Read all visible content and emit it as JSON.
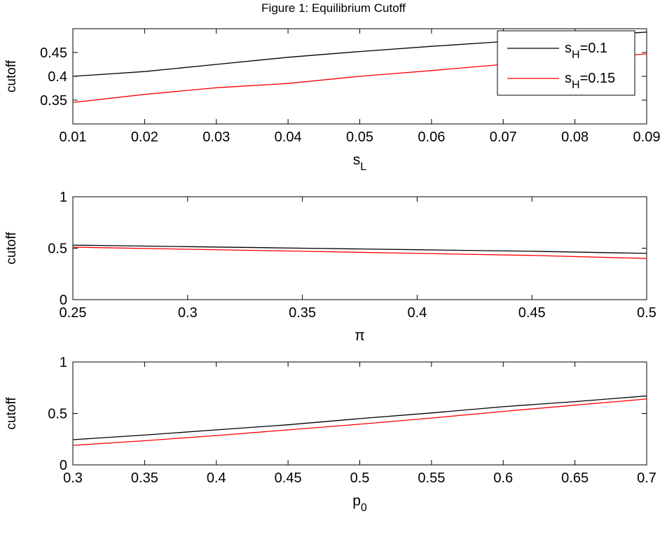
{
  "figure_title": "Figure 1: Equilibrium Cutoff",
  "chart_data": [
    {
      "type": "line",
      "xlabel_base": "s",
      "xlabel_sub": "L",
      "ylabel": "cutoff",
      "xlim": [
        0.01,
        0.09
      ],
      "ylim": [
        0.3,
        0.5
      ],
      "xticks": [
        "0.01",
        "0.02",
        "0.03",
        "0.04",
        "0.05",
        "0.06",
        "0.07",
        "0.08",
        "0.09"
      ],
      "xtick_values": [
        0.01,
        0.02,
        0.03,
        0.04,
        0.05,
        0.06,
        0.07,
        0.08,
        0.09
      ],
      "yticks": [
        "0.35",
        "0.4",
        "0.45"
      ],
      "ytick_values": [
        0.35,
        0.4,
        0.45
      ],
      "grid": false,
      "legend_position": "top-right",
      "series": [
        {
          "name": "s_H=0.1",
          "label_base": "s",
          "label_sub": "H",
          "label_rest": "=0.1",
          "color": "#000000",
          "x": [
            0.01,
            0.02,
            0.03,
            0.04,
            0.05,
            0.06,
            0.07,
            0.08,
            0.09
          ],
          "y": [
            0.4,
            0.41,
            0.425,
            0.44,
            0.452,
            0.463,
            0.473,
            0.483,
            0.493
          ]
        },
        {
          "name": "s_H=0.15",
          "label_base": "s",
          "label_sub": "H",
          "label_rest": "=0.15",
          "color": "#ff0000",
          "x": [
            0.01,
            0.02,
            0.03,
            0.04,
            0.05,
            0.06,
            0.07,
            0.08,
            0.09
          ],
          "y": [
            0.345,
            0.362,
            0.376,
            0.385,
            0.4,
            0.412,
            0.425,
            0.436,
            0.447
          ]
        }
      ]
    },
    {
      "type": "line",
      "xlabel_base": "π",
      "xlabel_sub": "",
      "ylabel": "cutoff",
      "xlim": [
        0.25,
        0.5
      ],
      "ylim": [
        0,
        1
      ],
      "xticks": [
        "0.25",
        "0.3",
        "0.35",
        "0.4",
        "0.45",
        "0.5"
      ],
      "xtick_values": [
        0.25,
        0.3,
        0.35,
        0.4,
        0.45,
        0.5
      ],
      "yticks": [
        "0",
        "0.5",
        "1"
      ],
      "ytick_values": [
        0,
        0.5,
        1
      ],
      "grid": false,
      "series": [
        {
          "name": "s_H=0.1",
          "color": "#000000",
          "x": [
            0.25,
            0.3,
            0.35,
            0.4,
            0.45,
            0.5
          ],
          "y": [
            0.53,
            0.515,
            0.5,
            0.485,
            0.47,
            0.45
          ]
        },
        {
          "name": "s_H=0.15",
          "color": "#ff0000",
          "x": [
            0.25,
            0.3,
            0.35,
            0.4,
            0.45,
            0.5
          ],
          "y": [
            0.51,
            0.49,
            0.47,
            0.45,
            0.43,
            0.4
          ]
        }
      ]
    },
    {
      "type": "line",
      "xlabel_base": "p",
      "xlabel_sub": "0",
      "ylabel": "cutoff",
      "xlim": [
        0.3,
        0.7
      ],
      "ylim": [
        0,
        1
      ],
      "xticks": [
        "0.3",
        "0.35",
        "0.4",
        "0.45",
        "0.5",
        "0.55",
        "0.6",
        "0.65",
        "0.7"
      ],
      "xtick_values": [
        0.3,
        0.35,
        0.4,
        0.45,
        0.5,
        0.55,
        0.6,
        0.65,
        0.7
      ],
      "yticks": [
        "0",
        "0.5",
        "1"
      ],
      "ytick_values": [
        0,
        0.5,
        1
      ],
      "grid": false,
      "series": [
        {
          "name": "s_H=0.1",
          "color": "#000000",
          "x": [
            0.3,
            0.35,
            0.4,
            0.45,
            0.5,
            0.55,
            0.6,
            0.65,
            0.7
          ],
          "y": [
            0.245,
            0.29,
            0.34,
            0.39,
            0.45,
            0.505,
            0.565,
            0.615,
            0.67
          ]
        },
        {
          "name": "s_H=0.15",
          "color": "#ff0000",
          "x": [
            0.3,
            0.35,
            0.4,
            0.45,
            0.5,
            0.55,
            0.6,
            0.65,
            0.7
          ],
          "y": [
            0.19,
            0.235,
            0.285,
            0.34,
            0.395,
            0.455,
            0.52,
            0.58,
            0.64
          ]
        }
      ]
    }
  ]
}
